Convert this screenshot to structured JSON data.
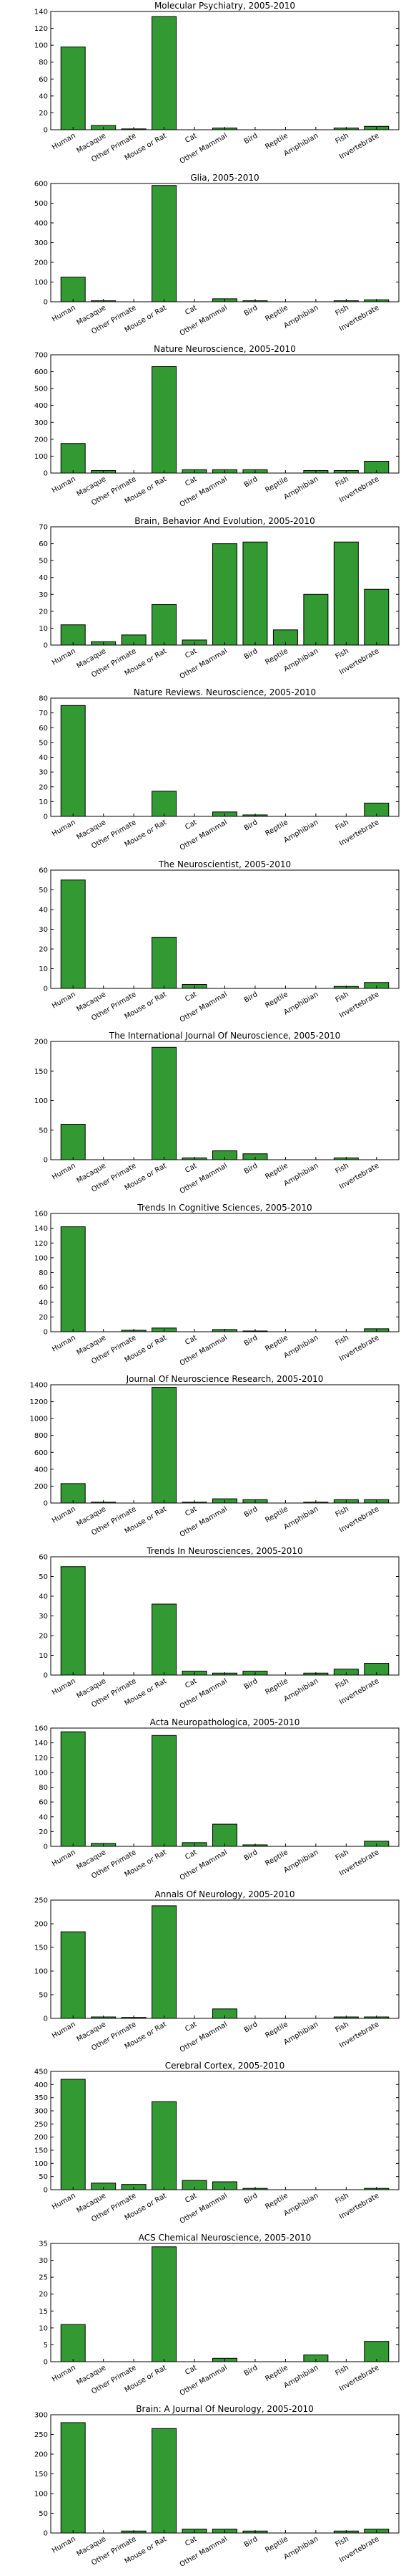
{
  "bar_color": "#339933",
  "chart_data": [
    {
      "type": "bar",
      "title": "Molecular Psychiatry, 2005-2010",
      "categories": [
        "Human",
        "Macaque",
        "Other Primate",
        "Mouse or Rat",
        "Cat",
        "Other Mammal",
        "Bird",
        "Reptile",
        "Amphibian",
        "Fish",
        "Invertebrate"
      ],
      "values": [
        98,
        5,
        1,
        134,
        0,
        2,
        0,
        0,
        0,
        2,
        4
      ],
      "ylim": [
        0,
        140
      ],
      "yticks": [
        0,
        20,
        40,
        60,
        80,
        100,
        120,
        140
      ]
    },
    {
      "type": "bar",
      "title": "Glia, 2005-2010",
      "categories": [
        "Human",
        "Macaque",
        "Other Primate",
        "Mouse or Rat",
        "Cat",
        "Other Mammal",
        "Bird",
        "Reptile",
        "Amphibian",
        "Fish",
        "Invertebrate"
      ],
      "values": [
        125,
        5,
        0,
        590,
        0,
        15,
        5,
        0,
        0,
        5,
        10
      ],
      "ylim": [
        0,
        600
      ],
      "yticks": [
        0,
        100,
        200,
        300,
        400,
        500,
        600
      ]
    },
    {
      "type": "bar",
      "title": "Nature Neuroscience, 2005-2010",
      "categories": [
        "Human",
        "Macaque",
        "Other Primate",
        "Mouse or Rat",
        "Cat",
        "Other Mammal",
        "Bird",
        "Reptile",
        "Amphibian",
        "Fish",
        "Invertebrate"
      ],
      "values": [
        175,
        15,
        0,
        630,
        20,
        20,
        20,
        0,
        15,
        15,
        70
      ],
      "ylim": [
        0,
        700
      ],
      "yticks": [
        0,
        100,
        200,
        300,
        400,
        500,
        600,
        700
      ]
    },
    {
      "type": "bar",
      "title": "Brain, Behavior And Evolution, 2005-2010",
      "categories": [
        "Human",
        "Macaque",
        "Other Primate",
        "Mouse or Rat",
        "Cat",
        "Other Mammal",
        "Bird",
        "Reptile",
        "Amphibian",
        "Fish",
        "Invertebrate"
      ],
      "values": [
        12,
        2,
        6,
        24,
        3,
        60,
        61,
        9,
        30,
        61,
        33
      ],
      "ylim": [
        0,
        70
      ],
      "yticks": [
        0,
        10,
        20,
        30,
        40,
        50,
        60,
        70
      ]
    },
    {
      "type": "bar",
      "title": "Nature Reviews. Neuroscience, 2005-2010",
      "categories": [
        "Human",
        "Macaque",
        "Other Primate",
        "Mouse or Rat",
        "Cat",
        "Other Mammal",
        "Bird",
        "Reptile",
        "Amphibian",
        "Fish",
        "Invertebrate"
      ],
      "values": [
        75,
        0,
        0,
        17,
        0,
        3,
        1,
        0,
        0,
        0,
        9
      ],
      "ylim": [
        0,
        80
      ],
      "yticks": [
        0,
        10,
        20,
        30,
        40,
        50,
        60,
        70,
        80
      ]
    },
    {
      "type": "bar",
      "title": "The Neuroscientist, 2005-2010",
      "categories": [
        "Human",
        "Macaque",
        "Other Primate",
        "Mouse or Rat",
        "Cat",
        "Other Mammal",
        "Bird",
        "Reptile",
        "Amphibian",
        "Fish",
        "Invertebrate"
      ],
      "values": [
        55,
        0,
        0,
        26,
        2,
        0,
        0,
        0,
        0,
        1,
        3
      ],
      "ylim": [
        0,
        60
      ],
      "yticks": [
        0,
        10,
        20,
        30,
        40,
        50,
        60
      ]
    },
    {
      "type": "bar",
      "title": "The International Journal Of Neuroscience, 2005-2010",
      "categories": [
        "Human",
        "Macaque",
        "Other Primate",
        "Mouse or Rat",
        "Cat",
        "Other Mammal",
        "Bird",
        "Reptile",
        "Amphibian",
        "Fish",
        "Invertebrate"
      ],
      "values": [
        60,
        0,
        0,
        190,
        3,
        15,
        10,
        0,
        0,
        3,
        0
      ],
      "ylim": [
        0,
        200
      ],
      "yticks": [
        0,
        50,
        100,
        150,
        200
      ]
    },
    {
      "type": "bar",
      "title": "Trends In Cognitive Sciences, 2005-2010",
      "categories": [
        "Human",
        "Macaque",
        "Other Primate",
        "Mouse or Rat",
        "Cat",
        "Other Mammal",
        "Bird",
        "Reptile",
        "Amphibian",
        "Fish",
        "Invertebrate"
      ],
      "values": [
        142,
        0,
        2,
        5,
        0,
        3,
        1,
        0,
        0,
        0,
        4
      ],
      "ylim": [
        0,
        160
      ],
      "yticks": [
        0,
        20,
        40,
        60,
        80,
        100,
        120,
        140,
        160
      ]
    },
    {
      "type": "bar",
      "title": "Journal Of Neuroscience Research, 2005-2010",
      "categories": [
        "Human",
        "Macaque",
        "Other Primate",
        "Mouse or Rat",
        "Cat",
        "Other Mammal",
        "Bird",
        "Reptile",
        "Amphibian",
        "Fish",
        "Invertebrate"
      ],
      "values": [
        230,
        10,
        0,
        1370,
        10,
        50,
        40,
        0,
        10,
        40,
        40
      ],
      "ylim": [
        0,
        1400
      ],
      "yticks": [
        0,
        200,
        400,
        600,
        800,
        1000,
        1200,
        1400
      ]
    },
    {
      "type": "bar",
      "title": "Trends In Neurosciences, 2005-2010",
      "categories": [
        "Human",
        "Macaque",
        "Other Primate",
        "Mouse or Rat",
        "Cat",
        "Other Mammal",
        "Bird",
        "Reptile",
        "Amphibian",
        "Fish",
        "Invertebrate"
      ],
      "values": [
        55,
        0,
        0,
        36,
        2,
        1,
        2,
        0,
        1,
        3,
        6
      ],
      "ylim": [
        0,
        60
      ],
      "yticks": [
        0,
        10,
        20,
        30,
        40,
        50,
        60
      ]
    },
    {
      "type": "bar",
      "title": "Acta Neuropathologica, 2005-2010",
      "categories": [
        "Human",
        "Macaque",
        "Other Primate",
        "Mouse or Rat",
        "Cat",
        "Other Mammal",
        "Bird",
        "Reptile",
        "Amphibian",
        "Fish",
        "Invertebrate"
      ],
      "values": [
        155,
        4,
        0,
        150,
        5,
        30,
        2,
        0,
        0,
        0,
        7
      ],
      "ylim": [
        0,
        160
      ],
      "yticks": [
        0,
        20,
        40,
        60,
        80,
        100,
        120,
        140,
        160
      ]
    },
    {
      "type": "bar",
      "title": "Annals Of Neurology, 2005-2010",
      "categories": [
        "Human",
        "Macaque",
        "Other Primate",
        "Mouse or Rat",
        "Cat",
        "Other Mammal",
        "Bird",
        "Reptile",
        "Amphibian",
        "Fish",
        "Invertebrate"
      ],
      "values": [
        183,
        3,
        2,
        238,
        0,
        20,
        0,
        0,
        0,
        3,
        3
      ],
      "ylim": [
        0,
        250
      ],
      "yticks": [
        0,
        50,
        100,
        150,
        200,
        250
      ]
    },
    {
      "type": "bar",
      "title": "Cerebral Cortex, 2005-2010",
      "categories": [
        "Human",
        "Macaque",
        "Other Primate",
        "Mouse or Rat",
        "Cat",
        "Other Mammal",
        "Bird",
        "Reptile",
        "Amphibian",
        "Fish",
        "Invertebrate"
      ],
      "values": [
        420,
        25,
        20,
        335,
        35,
        30,
        5,
        0,
        0,
        0,
        5
      ],
      "ylim": [
        0,
        450
      ],
      "yticks": [
        0,
        50,
        100,
        150,
        200,
        250,
        300,
        350,
        400,
        450
      ]
    },
    {
      "type": "bar",
      "title": "ACS Chemical Neuroscience, 2005-2010",
      "categories": [
        "Human",
        "Macaque",
        "Other Primate",
        "Mouse or Rat",
        "Cat",
        "Other Mammal",
        "Bird",
        "Reptile",
        "Amphibian",
        "Fish",
        "Invertebrate"
      ],
      "values": [
        11,
        0,
        0,
        34,
        0,
        1,
        0,
        0,
        2,
        0,
        6
      ],
      "ylim": [
        0,
        35
      ],
      "yticks": [
        0,
        5,
        10,
        15,
        20,
        25,
        30,
        35
      ]
    },
    {
      "type": "bar",
      "title": "Brain: A Journal Of Neurology, 2005-2010",
      "categories": [
        "Human",
        "Macaque",
        "Other Primate",
        "Mouse or Rat",
        "Cat",
        "Other Mammal",
        "Bird",
        "Reptile",
        "Amphibian",
        "Fish",
        "Invertebrate"
      ],
      "values": [
        280,
        0,
        5,
        265,
        10,
        10,
        5,
        0,
        0,
        5,
        10
      ],
      "ylim": [
        0,
        300
      ],
      "yticks": [
        0,
        50,
        100,
        150,
        200,
        250,
        300
      ]
    }
  ]
}
